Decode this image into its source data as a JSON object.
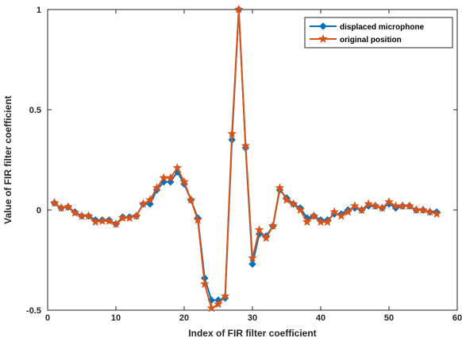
{
  "chart_data": {
    "type": "line",
    "xlabel": "Index of FIR filter coefficient",
    "ylabel": "Value of FIR filter coefficient",
    "xlim": [
      0,
      60
    ],
    "ylim": [
      -0.5,
      1
    ],
    "xticks": [
      0,
      10,
      20,
      30,
      40,
      50,
      60
    ],
    "yticks": [
      -0.5,
      0,
      0.5,
      1
    ],
    "xtick_labels": [
      "0",
      "10",
      "20",
      "30",
      "40",
      "50",
      "60"
    ],
    "ytick_labels": [
      "-0.5",
      "0",
      "0.5",
      "1"
    ],
    "legend_position": "top-right",
    "grid": false,
    "x": [
      1,
      2,
      3,
      4,
      5,
      6,
      7,
      8,
      9,
      10,
      11,
      12,
      13,
      14,
      15,
      16,
      17,
      18,
      19,
      20,
      21,
      22,
      23,
      24,
      25,
      26,
      27,
      28,
      29,
      30,
      31,
      32,
      33,
      34,
      35,
      36,
      37,
      38,
      39,
      40,
      41,
      42,
      43,
      44,
      45,
      46,
      47,
      48,
      49,
      50,
      51,
      52,
      53,
      54,
      55,
      56,
      57
    ],
    "series": [
      {
        "name": "displaced microphone",
        "color": "#0072BD",
        "marker": "diamond",
        "values": [
          0.035,
          0.01,
          0.015,
          -0.01,
          -0.03,
          -0.03,
          -0.05,
          -0.05,
          -0.05,
          -0.07,
          -0.035,
          -0.035,
          -0.03,
          0.03,
          0.03,
          0.1,
          0.14,
          0.14,
          0.19,
          0.13,
          0.05,
          -0.04,
          -0.34,
          -0.45,
          -0.45,
          -0.44,
          0.35,
          1.0,
          0.31,
          -0.27,
          -0.12,
          -0.13,
          -0.08,
          0.1,
          0.06,
          0.03,
          0.01,
          -0.04,
          -0.03,
          -0.05,
          -0.05,
          -0.02,
          -0.02,
          0.0,
          0.01,
          0.0,
          0.02,
          0.02,
          0.01,
          0.03,
          0.01,
          0.02,
          0.02,
          0.0,
          0.0,
          -0.01,
          -0.01
        ]
      },
      {
        "name": "original position",
        "color": "#D95319",
        "marker": "star",
        "values": [
          0.035,
          0.01,
          0.015,
          -0.015,
          -0.03,
          -0.03,
          -0.06,
          -0.055,
          -0.055,
          -0.07,
          -0.04,
          -0.04,
          -0.03,
          0.03,
          0.05,
          0.11,
          0.16,
          0.16,
          0.21,
          0.14,
          0.05,
          -0.05,
          -0.37,
          -0.49,
          -0.47,
          -0.43,
          0.38,
          1.0,
          0.32,
          -0.24,
          -0.1,
          -0.14,
          -0.08,
          0.11,
          0.05,
          0.03,
          0.0,
          -0.06,
          -0.03,
          -0.06,
          -0.06,
          -0.01,
          -0.03,
          -0.01,
          0.02,
          0.0,
          0.03,
          0.02,
          0.01,
          0.04,
          0.02,
          0.02,
          0.02,
          0.0,
          0.0,
          -0.01,
          -0.02
        ]
      }
    ]
  }
}
